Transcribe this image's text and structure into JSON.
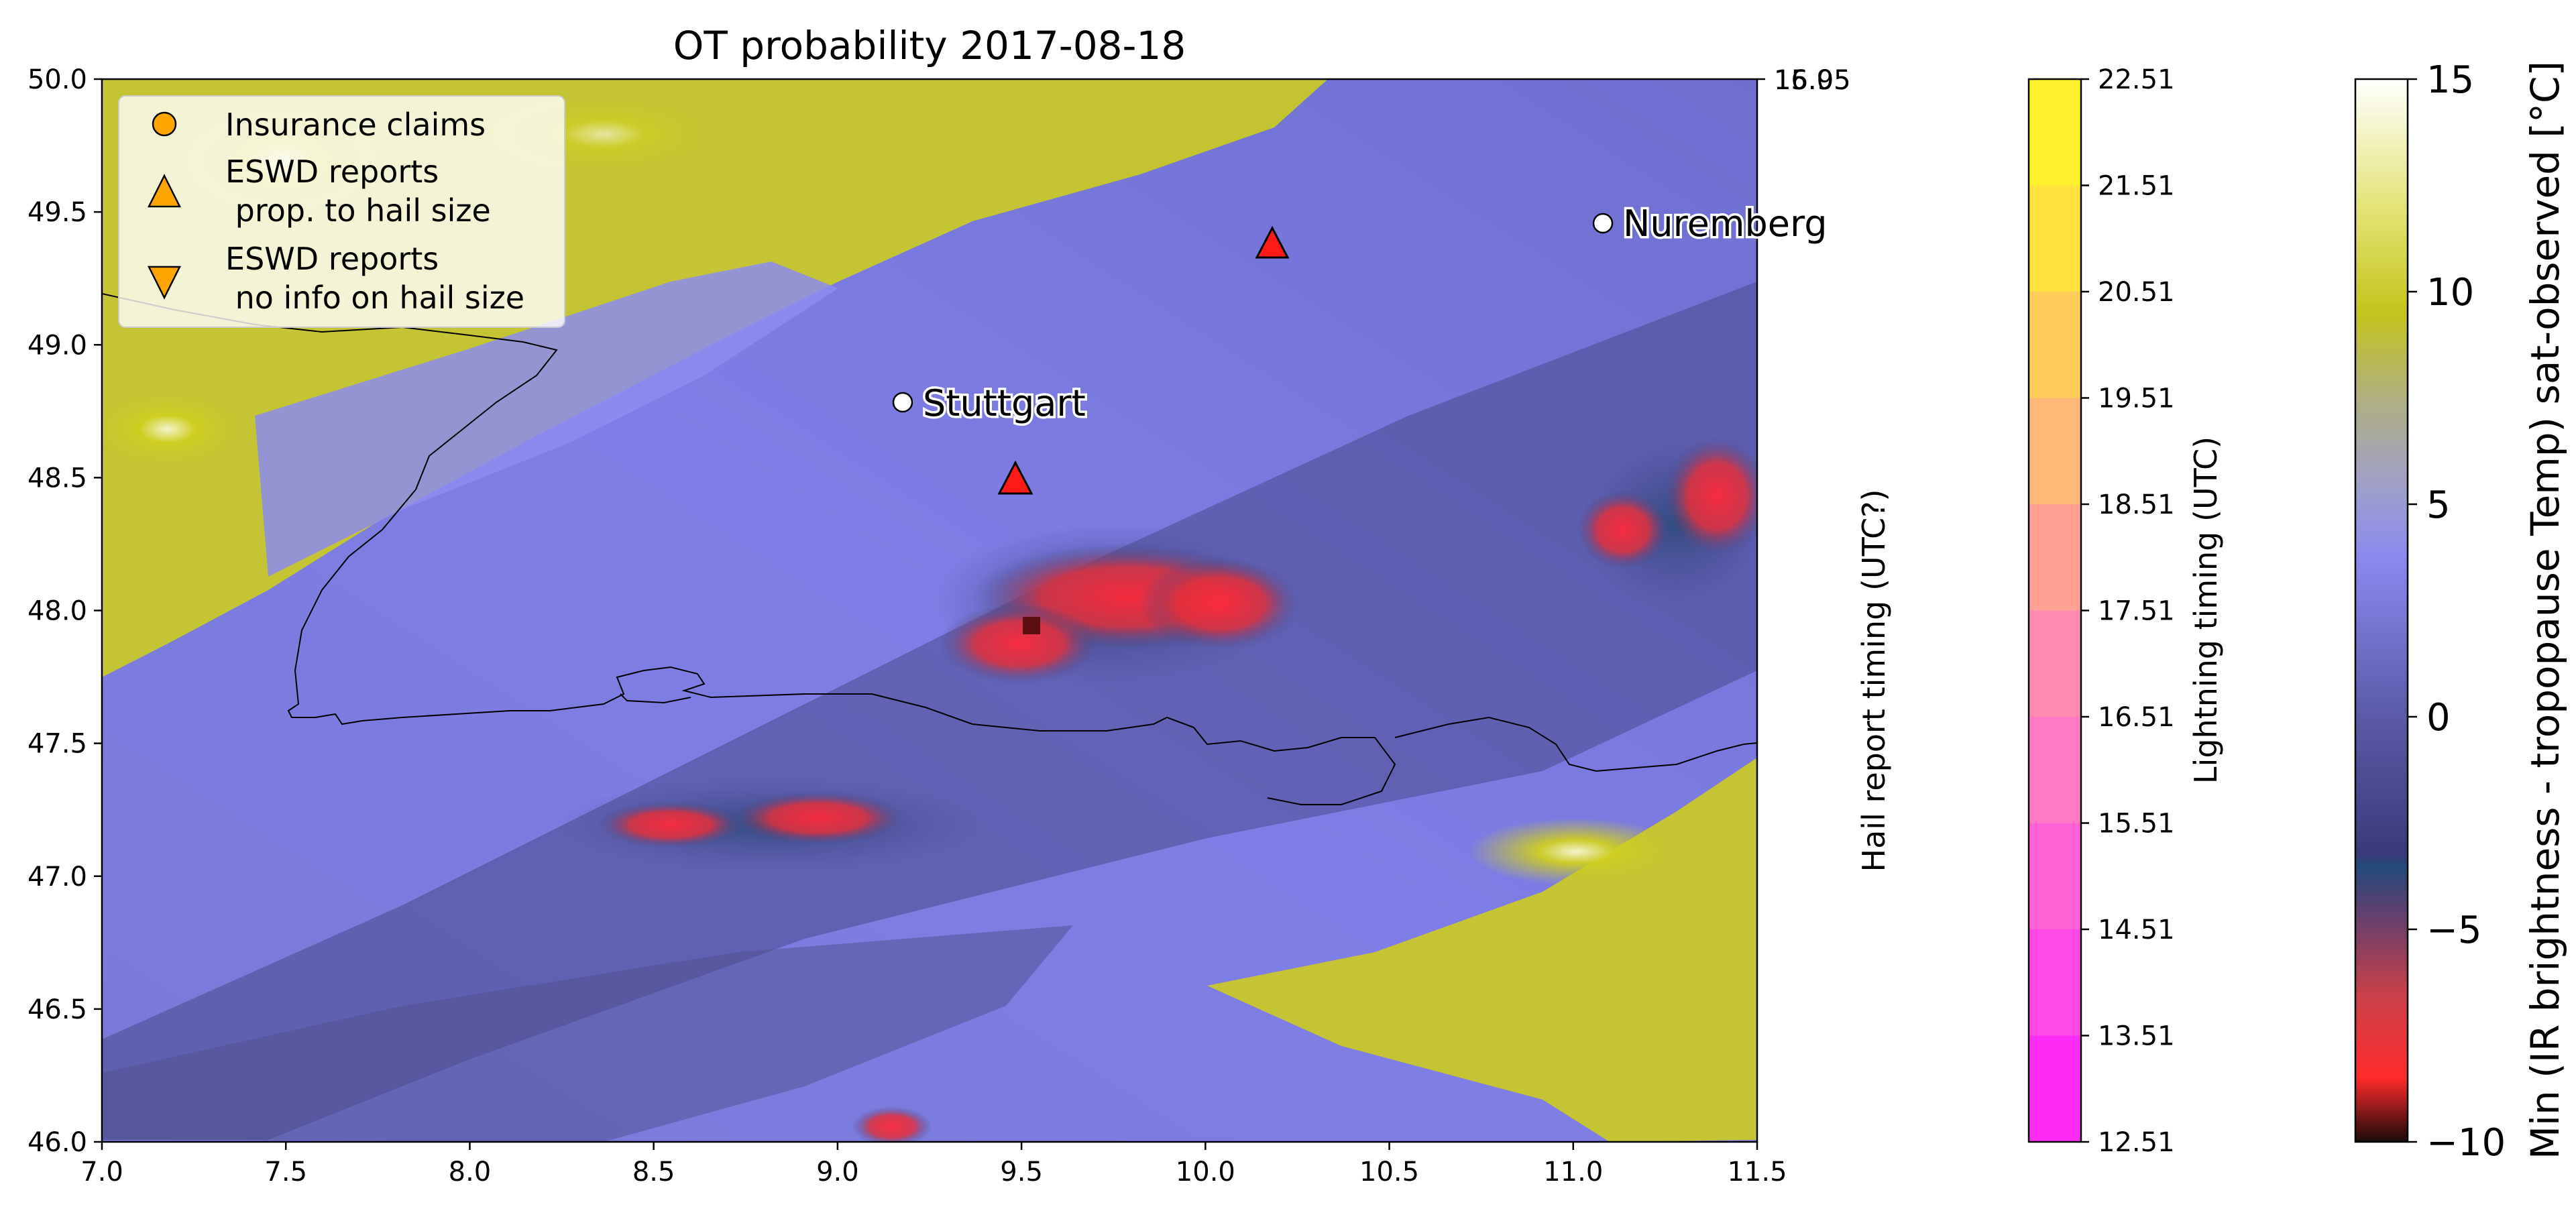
{
  "chart_data": {
    "type": "heatmap",
    "title": "OT probability 2017-08-18",
    "x_ticks": [
      "7.0",
      "7.5",
      "8.0",
      "8.5",
      "9.0",
      "9.5",
      "10.0",
      "10.5",
      "11.0",
      "11.5"
    ],
    "y_ticks": [
      "46.0",
      "46.5",
      "47.0",
      "47.5",
      "48.0",
      "48.5",
      "49.0",
      "49.5",
      "50.0"
    ],
    "xlim": [
      7.0,
      11.5
    ],
    "ylim": [
      46.0,
      50.0
    ],
    "right_axis_ticks": [
      "16.05",
      "15.95"
    ],
    "legend": {
      "placement": "upper-left",
      "entries": [
        {
          "label": "Insurance claims",
          "marker": "circle",
          "color": "#ffa500"
        },
        {
          "label": "ESWD reports\n prop. to hail size",
          "marker": "triangle-up",
          "color": "#ffa500"
        },
        {
          "label": "ESWD reports\n no info on hail size",
          "marker": "triangle-down",
          "color": "#ffa500"
        }
      ]
    },
    "cities": [
      {
        "name": "Nuremberg",
        "lon": 11.08,
        "lat": 49.45
      },
      {
        "name": "Stuttgart",
        "lon": 9.18,
        "lat": 48.78
      }
    ],
    "eswd_reports": [
      {
        "lon": 10.18,
        "lat": 49.38
      },
      {
        "lon": 9.48,
        "lat": 48.49
      }
    ],
    "colorbars": [
      {
        "label": "Hail report timing (UTC?)",
        "ticks": []
      },
      {
        "label": "Lightning timing (UTC)",
        "ticks": [
          "22.51",
          "21.51",
          "20.51",
          "19.51",
          "18.51",
          "17.51",
          "16.51",
          "15.51",
          "14.51",
          "13.51",
          "12.51"
        ],
        "colors": [
          "#ff2cf5",
          "#ff4ae6",
          "#ff62d5",
          "#ff79c4",
          "#ff8cb0",
          "#ffa294",
          "#ffb878",
          "#ffce5a",
          "#ffe23e",
          "#fff02c"
        ]
      },
      {
        "label": "Min (IR brightness - tropopause Temp) sat-observed [°C]",
        "ticks": [
          "15",
          "10",
          "5",
          "0",
          "−5",
          "−10"
        ],
        "range": [
          -10,
          15
        ]
      }
    ]
  }
}
